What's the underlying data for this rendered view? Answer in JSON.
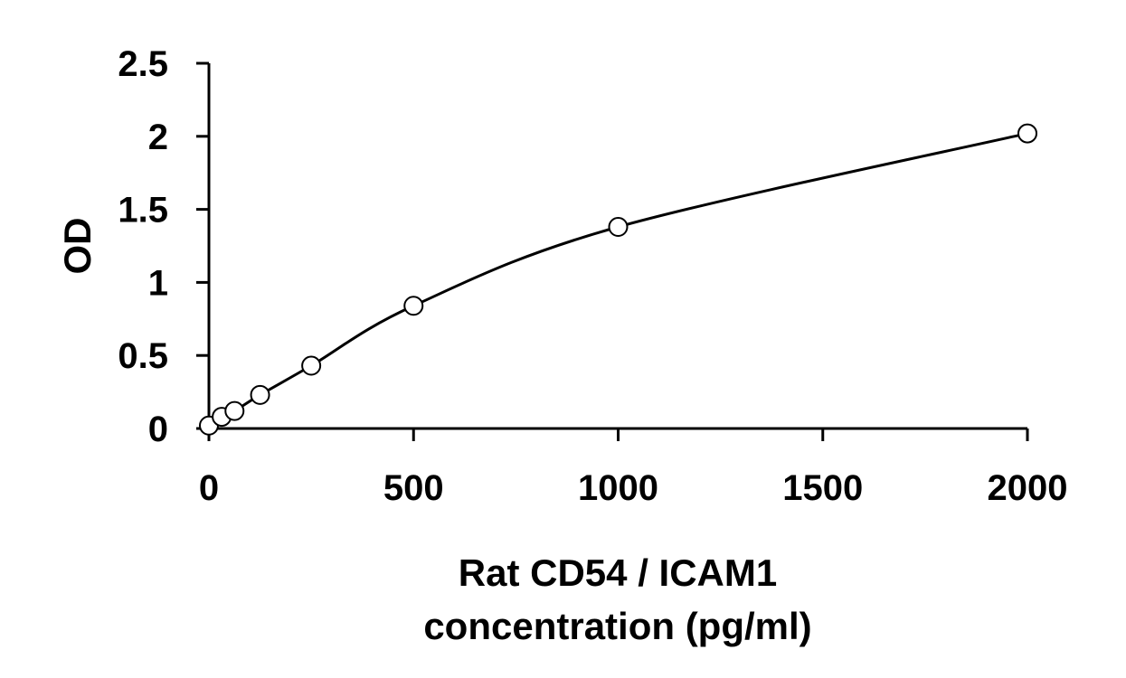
{
  "chart_data": {
    "type": "scatter",
    "title": "",
    "xlabel_lines": [
      "Rat CD54 / ICAM1",
      "concentration (pg/ml)"
    ],
    "ylabel": "OD",
    "xlim": [
      0,
      2000
    ],
    "ylim": [
      0,
      2.5
    ],
    "x_ticks": [
      0,
      500,
      1000,
      1500,
      2000
    ],
    "x_tick_labels": [
      "0",
      "500",
      "1000",
      "1500",
      "2000"
    ],
    "y_ticks": [
      0,
      0.5,
      1,
      1.5,
      2,
      2.5
    ],
    "y_tick_labels": [
      "0",
      "0.5",
      "1",
      "1.5",
      "2",
      "2.5"
    ],
    "grid": false,
    "legend": "none",
    "series": [
      {
        "points": [
          {
            "x": 0,
            "y": 0.02
          },
          {
            "x": 31.25,
            "y": 0.08
          },
          {
            "x": 62.5,
            "y": 0.12
          },
          {
            "x": 125,
            "y": 0.23
          },
          {
            "x": 250,
            "y": 0.43
          },
          {
            "x": 500,
            "y": 0.84
          },
          {
            "x": 1000,
            "y": 1.38
          },
          {
            "x": 2000,
            "y": 2.02
          }
        ],
        "marker": "open-circle",
        "trendline": "smooth-curve",
        "color": "#000000"
      }
    ]
  }
}
